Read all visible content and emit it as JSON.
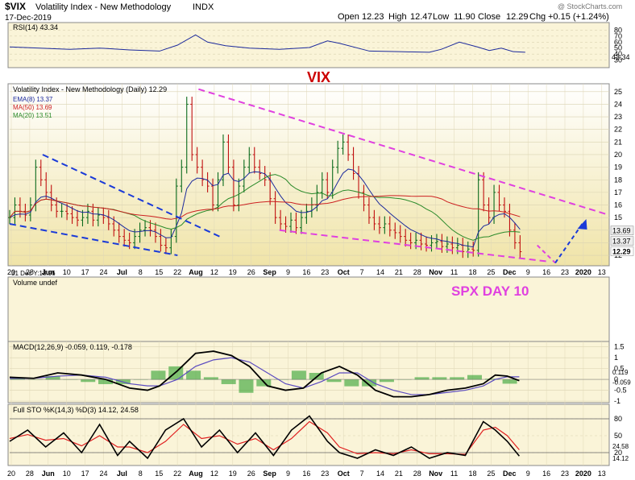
{
  "header": {
    "symbol": "$VIX",
    "name": "Volatility Index - New Methodology",
    "exchange": "INDX",
    "date": "17-Dec-2019",
    "open_label": "Open",
    "open": "12.23",
    "high_label": "High",
    "high": "12.47",
    "low_label": "Low",
    "low": "11.90",
    "close_label": "Close",
    "close": "12.29",
    "chg_label": "Chg",
    "chg": "+0.15 (+1.24%)",
    "watermark": "@ StockCharts.com"
  },
  "annotations": {
    "vix": "VIX",
    "spx": "SPX DAY 10",
    "panel_date": "31 Dec Y:18.96"
  },
  "colors": {
    "panel_bg": "#faf4d8",
    "vix_bg_top": "#ffffff",
    "vix_bg_bottom": "#f0e4a8",
    "candle": "#0a6a1c",
    "candle_down": "#c01010",
    "ema": "#1c2a9c",
    "ma50": "#cc2020",
    "ma20": "#2a8a2a",
    "trend_pink": "#e040e0",
    "trend_blue": "#1a3ad8",
    "annotation_red": "#cc0000",
    "annotation_pink": "#e040e0",
    "macd_line": "#000000",
    "signal_line": "#5a4ac0",
    "histogram": "#2fa02f",
    "sto_k": "#000000",
    "sto_d": "#e02020"
  },
  "x_axis": {
    "labels": [
      "20",
      "28",
      "Jun",
      "10",
      "17",
      "24",
      "Jul",
      "8",
      "15",
      "22",
      "Aug",
      "12",
      "19",
      "26",
      "Sep",
      "9",
      "16",
      "23",
      "Oct",
      "7",
      "14",
      "21",
      "28",
      "Nov",
      "11",
      "18",
      "25",
      "Dec",
      "9",
      "16",
      "23",
      "2020",
      "13"
    ],
    "major": [
      "Jun",
      "Jul",
      "Aug",
      "Sep",
      "Oct",
      "Nov",
      "Dec",
      "2020"
    ]
  },
  "chart_data": [
    {
      "type": "line",
      "panel": "rsi",
      "label": "RSI(14) 43.34",
      "ylim": [
        20,
        90
      ],
      "y_ticks": [
        80,
        70,
        60,
        50,
        40,
        30
      ],
      "last_value": "43.34",
      "x": [
        0,
        0.05,
        0.1,
        0.15,
        0.2,
        0.25,
        0.28,
        0.31,
        0.33,
        0.36,
        0.4,
        0.45,
        0.5,
        0.53,
        0.55,
        0.6,
        0.65,
        0.7,
        0.72,
        0.75,
        0.78,
        0.8,
        0.82,
        0.84,
        0.86
      ],
      "values": [
        52,
        50,
        48,
        50,
        47,
        45,
        55,
        72,
        60,
        54,
        50,
        48,
        51,
        62,
        58,
        45,
        44,
        43,
        48,
        60,
        52,
        46,
        50,
        44,
        43
      ]
    },
    {
      "type": "candlestick",
      "panel": "price",
      "label": "Volatility Index - New Methodology (Daily) 12.29",
      "ylim": [
        11.3,
        25.5
      ],
      "y_ticks": [
        25,
        24,
        23,
        22,
        21,
        20,
        19,
        18,
        17,
        16,
        15,
        14,
        13,
        12
      ],
      "right_labels": [
        "13.69",
        "13.37",
        "12.29"
      ],
      "legend": [
        {
          "name": "EMA(8) 13.37",
          "color": "#1c2a9c"
        },
        {
          "name": "MA(50) 13.69",
          "color": "#cc2020"
        },
        {
          "name": "MA(20) 13.51",
          "color": "#2a8a2a"
        }
      ],
      "closes": [
        15,
        16,
        15.5,
        15.2,
        16,
        19,
        18,
        17,
        16,
        15.5,
        15.5,
        15.3,
        15.0,
        14.8,
        15,
        15.5,
        14.8,
        15.2,
        15.0,
        14.5,
        14.0,
        13.5,
        13.2,
        13.0,
        13.5,
        14.0,
        14.2,
        14.0,
        13.5,
        12.8,
        12.6,
        13.5,
        17.5,
        19,
        24,
        20,
        19,
        18,
        17.5,
        16,
        18,
        21,
        19,
        16,
        17.5,
        19,
        20,
        19,
        18.5,
        18,
        16.5,
        15,
        14.5,
        14.3,
        14.8,
        14.2,
        15.0,
        15.5,
        16,
        17,
        18,
        17,
        19,
        20.5,
        21,
        20,
        18.5,
        17,
        16,
        15,
        14.5,
        14.2,
        14.5,
        14.0,
        13.8,
        13.5,
        13.2,
        13.0,
        13.2,
        12.9,
        12.8,
        13.0,
        13.1,
        12.7,
        12.9,
        12.6,
        12.8,
        12.3,
        12.5,
        12.4,
        18,
        16,
        15,
        17,
        16,
        15.5,
        14,
        13,
        12.29
      ]
    },
    {
      "type": "bar",
      "panel": "volume",
      "label": "Volume undef"
    },
    {
      "type": "line",
      "panel": "macd",
      "label": "MACD(12,26,9) -0.059, 0.119, -0.178",
      "ylim": [
        -1.0,
        1.6
      ],
      "y_ticks": [
        1.5,
        1.0,
        0.5,
        0.0,
        -0.5,
        -1.0
      ],
      "right_labels": [
        "0.119",
        "-0.059"
      ],
      "series": [
        {
          "name": "MACD",
          "x": [
            0,
            0.04,
            0.08,
            0.12,
            0.16,
            0.2,
            0.23,
            0.25,
            0.28,
            0.31,
            0.34,
            0.37,
            0.4,
            0.43,
            0.46,
            0.49,
            0.52,
            0.55,
            0.58,
            0.61,
            0.64,
            0.67,
            0.7,
            0.73,
            0.76,
            0.79,
            0.81,
            0.83,
            0.85
          ],
          "values": [
            0.1,
            0.05,
            0.3,
            0.2,
            0.0,
            -0.4,
            -0.5,
            -0.3,
            0.4,
            1.2,
            1.3,
            1.1,
            0.6,
            -0.3,
            -0.5,
            -0.4,
            0.3,
            0.6,
            0.2,
            -0.5,
            -0.8,
            -0.8,
            -0.7,
            -0.5,
            -0.4,
            -0.2,
            0.2,
            0.15,
            -0.06
          ]
        },
        {
          "name": "Signal",
          "x": [
            0,
            0.04,
            0.08,
            0.12,
            0.16,
            0.2,
            0.23,
            0.25,
            0.28,
            0.31,
            0.34,
            0.37,
            0.4,
            0.43,
            0.46,
            0.49,
            0.52,
            0.55,
            0.58,
            0.61,
            0.64,
            0.67,
            0.7,
            0.73,
            0.76,
            0.79,
            0.81,
            0.83,
            0.85
          ],
          "values": [
            0.05,
            0.05,
            0.15,
            0.2,
            0.1,
            -0.2,
            -0.3,
            -0.3,
            0.0,
            0.6,
            0.9,
            1.0,
            0.8,
            0.3,
            -0.2,
            -0.4,
            -0.1,
            0.3,
            0.3,
            -0.2,
            -0.5,
            -0.7,
            -0.7,
            -0.6,
            -0.5,
            -0.3,
            0.0,
            0.12,
            0.12
          ]
        }
      ],
      "histogram": [
        0.05,
        0.0,
        0.15,
        0.0,
        -0.1,
        -0.2,
        -0.2,
        0.0,
        0.4,
        0.6,
        0.4,
        0.1,
        -0.2,
        -0.6,
        -0.3,
        0.0,
        0.4,
        0.3,
        -0.1,
        -0.3,
        -0.3,
        -0.1,
        0.0,
        0.1,
        0.1,
        0.1,
        0.2,
        0.03,
        -0.18
      ]
    },
    {
      "type": "line",
      "panel": "stochastic",
      "label": "Full STO %K(14,3) %D(3) 14.12, 24.58",
      "ylim": [
        0,
        100
      ],
      "y_ticks": [
        80,
        50,
        20
      ],
      "right_labels": [
        "24.58",
        "14.12"
      ],
      "series": [
        {
          "name": "%K",
          "x": [
            0,
            0.03,
            0.06,
            0.09,
            0.12,
            0.15,
            0.18,
            0.2,
            0.23,
            0.26,
            0.29,
            0.32,
            0.35,
            0.38,
            0.41,
            0.44,
            0.47,
            0.5,
            0.53,
            0.55,
            0.58,
            0.61,
            0.64,
            0.67,
            0.7,
            0.73,
            0.76,
            0.79,
            0.81,
            0.83,
            0.85
          ],
          "values": [
            40,
            60,
            30,
            55,
            20,
            70,
            15,
            40,
            10,
            60,
            80,
            30,
            60,
            20,
            55,
            15,
            60,
            85,
            40,
            20,
            10,
            25,
            15,
            30,
            10,
            20,
            15,
            75,
            60,
            40,
            14
          ]
        },
        {
          "name": "%D",
          "x": [
            0,
            0.03,
            0.06,
            0.09,
            0.12,
            0.15,
            0.18,
            0.2,
            0.23,
            0.26,
            0.29,
            0.32,
            0.35,
            0.38,
            0.41,
            0.44,
            0.47,
            0.5,
            0.53,
            0.55,
            0.58,
            0.61,
            0.64,
            0.67,
            0.7,
            0.73,
            0.76,
            0.79,
            0.81,
            0.83,
            0.85
          ],
          "values": [
            45,
            52,
            42,
            45,
            32,
            50,
            30,
            30,
            20,
            40,
            70,
            45,
            50,
            35,
            45,
            25,
            45,
            75,
            55,
            30,
            18,
            20,
            18,
            25,
            18,
            18,
            17,
            60,
            65,
            50,
            25
          ]
        }
      ]
    }
  ]
}
